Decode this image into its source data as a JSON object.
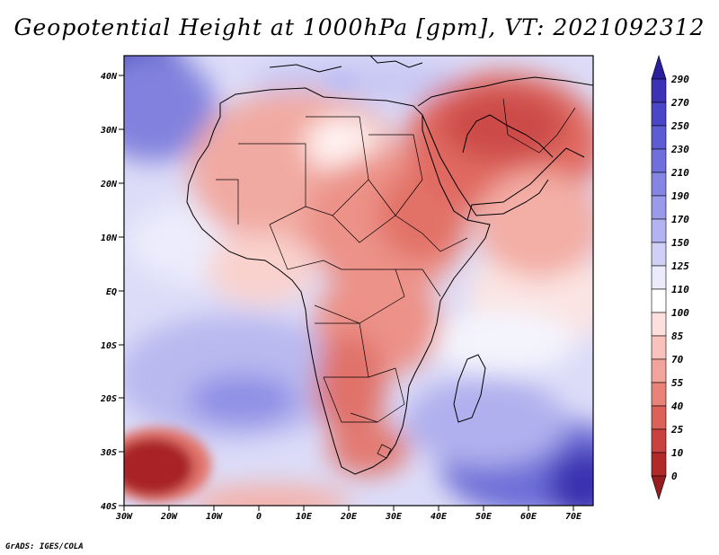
{
  "title": "Geopotential Height at 1000hPa [gpm], VT: 2021092312",
  "credit": "GrADS: IGES/COLA",
  "lat_labels": [
    "40N",
    "30N",
    "20N",
    "10N",
    "EQ",
    "10S",
    "20S",
    "30S",
    "40S"
  ],
  "lon_labels": [
    "30W",
    "20W",
    "10W",
    "0",
    "10E",
    "20E",
    "30E",
    "40E",
    "50E",
    "60E",
    "70E"
  ],
  "colorbar": {
    "levels": [
      "290",
      "270",
      "250",
      "230",
      "210",
      "190",
      "170",
      "150",
      "125",
      "110",
      "100",
      "85",
      "70",
      "55",
      "40",
      "25",
      "10",
      "0"
    ],
    "colors": [
      "#2b1e9c",
      "#3b32b6",
      "#4a46c8",
      "#5c5cd4",
      "#7070dc",
      "#8585e4",
      "#9a9aea",
      "#b3b3f1",
      "#cfcff7",
      "#ebebfb",
      "#ffffff",
      "#fde0de",
      "#f9c2bd",
      "#f2a49c",
      "#e98279",
      "#dc6159",
      "#c94240",
      "#b2292a",
      "#951d1f"
    ]
  }
}
